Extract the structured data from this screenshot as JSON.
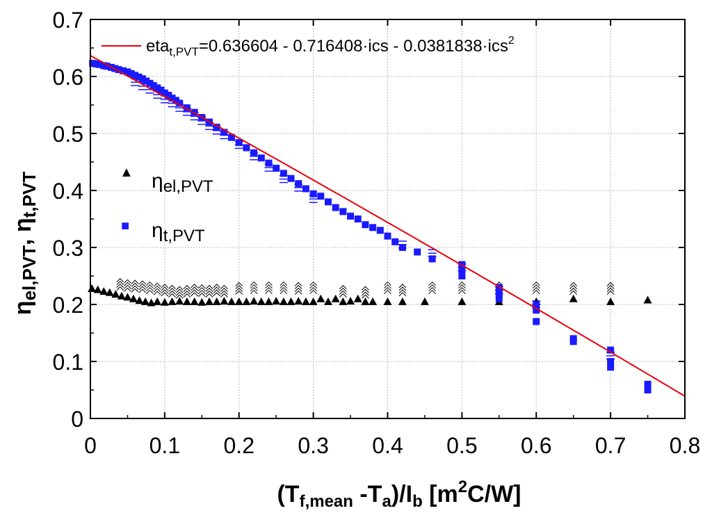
{
  "chart_data": {
    "type": "scatter",
    "xlabel": {
      "main": "(T",
      "sub1": "f,mean",
      "mid1": " -T",
      "sub2": "a",
      "mid2": ")/I",
      "sub3": "b",
      "mid3": " [m",
      "sup": "2",
      "tail": "C/W]"
    },
    "ylabel": {
      "eta1": "η",
      "sub1": "el,PVT",
      "sep": ",   ",
      "eta2": "η",
      "sub2": "t,PVT"
    },
    "xlim": [
      0,
      0.8
    ],
    "ylim": [
      0,
      0.7
    ],
    "x_ticks": [
      0,
      0.1,
      0.2,
      0.3,
      0.4,
      0.5,
      0.6,
      0.7,
      0.8
    ],
    "x_tick_labels": [
      "0",
      "0.1",
      "0.2",
      "0.3",
      "0.4",
      "0.5",
      "0.6",
      "0.7",
      "0.8"
    ],
    "y_ticks": [
      0,
      0.1,
      0.2,
      0.3,
      0.4,
      0.5,
      0.6,
      0.7
    ],
    "y_tick_labels": [
      "0",
      "0.1",
      "0.2",
      "0.3",
      "0.4",
      "0.5",
      "0.6",
      "0.7"
    ],
    "grid": true,
    "legend": {
      "placement": "center-left",
      "items": [
        {
          "symbol": "▲",
          "eta": "η",
          "sub": "el,PVT",
          "color": "#000000"
        },
        {
          "symbol": "■",
          "eta": "η",
          "sub": "t,PVT",
          "color": "#1a1aff"
        }
      ]
    },
    "fit": {
      "name": "eta_t,PVT fit",
      "label": {
        "pre": "eta",
        "sub": "t,PVT",
        "mid": "=0.636604 - 0.716408·ics - 0.0381838·ics",
        "sup": "2"
      },
      "coefficients": [
        0.636604,
        -0.716408,
        -0.0381838
      ],
      "x_range": [
        0,
        0.8
      ],
      "color": "#e8000b"
    },
    "series": [
      {
        "name": "η t,PVT",
        "marker": "square",
        "color": "#1a1aff",
        "points": [
          [
            0.003,
            0.623
          ],
          [
            0.008,
            0.622
          ],
          [
            0.012,
            0.621
          ],
          [
            0.018,
            0.619
          ],
          [
            0.022,
            0.618
          ],
          [
            0.028,
            0.616
          ],
          [
            0.033,
            0.614
          ],
          [
            0.038,
            0.612
          ],
          [
            0.044,
            0.61
          ],
          [
            0.05,
            0.608
          ],
          [
            0.055,
            0.605
          ],
          [
            0.06,
            0.602
          ],
          [
            0.065,
            0.599
          ],
          [
            0.07,
            0.596
          ],
          [
            0.075,
            0.592
          ],
          [
            0.08,
            0.588
          ],
          [
            0.085,
            0.584
          ],
          [
            0.09,
            0.58
          ],
          [
            0.095,
            0.576
          ],
          [
            0.1,
            0.571
          ],
          [
            0.105,
            0.567
          ],
          [
            0.11,
            0.562
          ],
          [
            0.115,
            0.558
          ],
          [
            0.12,
            0.553
          ],
          [
            0.13,
            0.545
          ],
          [
            0.14,
            0.537
          ],
          [
            0.15,
            0.528
          ],
          [
            0.16,
            0.52
          ],
          [
            0.17,
            0.511
          ],
          [
            0.18,
            0.502
          ],
          [
            0.19,
            0.493
          ],
          [
            0.2,
            0.484
          ],
          [
            0.21,
            0.475
          ],
          [
            0.22,
            0.466
          ],
          [
            0.23,
            0.457
          ],
          [
            0.24,
            0.448
          ],
          [
            0.25,
            0.439
          ],
          [
            0.26,
            0.43
          ],
          [
            0.27,
            0.421
          ],
          [
            0.28,
            0.412
          ],
          [
            0.29,
            0.403
          ],
          [
            0.3,
            0.394
          ],
          [
            0.31,
            0.39
          ],
          [
            0.32,
            0.38
          ],
          [
            0.33,
            0.37
          ],
          [
            0.34,
            0.363
          ],
          [
            0.35,
            0.355
          ],
          [
            0.36,
            0.35
          ],
          [
            0.37,
            0.34
          ],
          [
            0.38,
            0.335
          ],
          [
            0.39,
            0.33
          ],
          [
            0.4,
            0.32
          ],
          [
            0.41,
            0.31
          ],
          [
            0.42,
            0.3
          ],
          [
            0.44,
            0.292
          ],
          [
            0.46,
            0.28
          ],
          [
            0.5,
            0.26
          ],
          [
            0.5,
            0.25
          ],
          [
            0.5,
            0.27
          ],
          [
            0.55,
            0.22
          ],
          [
            0.55,
            0.21
          ],
          [
            0.55,
            0.23
          ],
          [
            0.6,
            0.19
          ],
          [
            0.6,
            0.17
          ],
          [
            0.6,
            0.2
          ],
          [
            0.65,
            0.14
          ],
          [
            0.65,
            0.135
          ],
          [
            0.7,
            0.1
          ],
          [
            0.7,
            0.09
          ],
          [
            0.7,
            0.12
          ],
          [
            0.75,
            0.06
          ],
          [
            0.75,
            0.05
          ]
        ]
      },
      {
        "name": "η el,PVT",
        "marker": "triangle",
        "color": "#000000",
        "points": [
          [
            0.002,
            0.228
          ],
          [
            0.01,
            0.226
          ],
          [
            0.018,
            0.223
          ],
          [
            0.026,
            0.221
          ],
          [
            0.034,
            0.218
          ],
          [
            0.042,
            0.215
          ],
          [
            0.05,
            0.213
          ],
          [
            0.058,
            0.21
          ],
          [
            0.066,
            0.207
          ],
          [
            0.074,
            0.205
          ],
          [
            0.082,
            0.203
          ],
          [
            0.09,
            0.205
          ],
          [
            0.1,
            0.204
          ],
          [
            0.11,
            0.205
          ],
          [
            0.12,
            0.206
          ],
          [
            0.13,
            0.205
          ],
          [
            0.14,
            0.205
          ],
          [
            0.15,
            0.204
          ],
          [
            0.16,
            0.205
          ],
          [
            0.17,
            0.205
          ],
          [
            0.18,
            0.206
          ],
          [
            0.19,
            0.205
          ],
          [
            0.2,
            0.205
          ],
          [
            0.21,
            0.205
          ],
          [
            0.22,
            0.206
          ],
          [
            0.23,
            0.205
          ],
          [
            0.24,
            0.205
          ],
          [
            0.25,
            0.206
          ],
          [
            0.26,
            0.205
          ],
          [
            0.27,
            0.205
          ],
          [
            0.28,
            0.206
          ],
          [
            0.29,
            0.205
          ],
          [
            0.3,
            0.205
          ],
          [
            0.31,
            0.21
          ],
          [
            0.32,
            0.205
          ],
          [
            0.33,
            0.21
          ],
          [
            0.34,
            0.205
          ],
          [
            0.35,
            0.206
          ],
          [
            0.36,
            0.21
          ],
          [
            0.37,
            0.205
          ],
          [
            0.38,
            0.205
          ],
          [
            0.4,
            0.205
          ],
          [
            0.42,
            0.205
          ],
          [
            0.45,
            0.205
          ],
          [
            0.5,
            0.205
          ],
          [
            0.55,
            0.205
          ],
          [
            0.6,
            0.205
          ],
          [
            0.65,
            0.21
          ],
          [
            0.7,
            0.205
          ],
          [
            0.75,
            0.208
          ]
        ]
      },
      {
        "name": "η t,PVT (dense band)",
        "marker": "dash",
        "color": "#1a1aff",
        "points": [
          [
            0.06,
            0.59
          ],
          [
            0.07,
            0.583
          ],
          [
            0.08,
            0.577
          ],
          [
            0.09,
            0.568
          ],
          [
            0.1,
            0.56
          ],
          [
            0.11,
            0.553
          ],
          [
            0.12,
            0.545
          ],
          [
            0.13,
            0.538
          ],
          [
            0.14,
            0.53
          ],
          [
            0.15,
            0.522
          ],
          [
            0.16,
            0.513
          ],
          [
            0.17,
            0.505
          ],
          [
            0.18,
            0.497
          ],
          [
            0.2,
            0.48
          ],
          [
            0.22,
            0.46
          ],
          [
            0.24,
            0.44
          ],
          [
            0.26,
            0.42
          ],
          [
            0.28,
            0.405
          ],
          [
            0.3,
            0.385
          ],
          [
            0.42,
            0.305
          ],
          [
            0.46,
            0.29
          ],
          [
            0.5,
            0.265
          ],
          [
            0.55,
            0.225
          ],
          [
            0.6,
            0.2
          ],
          [
            0.7,
            0.11
          ]
        ]
      },
      {
        "name": "η el,PVT (dense band)",
        "marker": "chevron",
        "color": "#000000",
        "points": [
          [
            0.04,
            0.232
          ],
          [
            0.05,
            0.23
          ],
          [
            0.06,
            0.229
          ],
          [
            0.07,
            0.228
          ],
          [
            0.08,
            0.226
          ],
          [
            0.09,
            0.224
          ],
          [
            0.1,
            0.222
          ],
          [
            0.11,
            0.22
          ],
          [
            0.12,
            0.218
          ],
          [
            0.13,
            0.22
          ],
          [
            0.14,
            0.222
          ],
          [
            0.15,
            0.221
          ],
          [
            0.16,
            0.22
          ],
          [
            0.17,
            0.222
          ],
          [
            0.18,
            0.22
          ],
          [
            0.2,
            0.225
          ],
          [
            0.22,
            0.226
          ],
          [
            0.24,
            0.226
          ],
          [
            0.26,
            0.226
          ],
          [
            0.28,
            0.225
          ],
          [
            0.3,
            0.226
          ],
          [
            0.34,
            0.22
          ],
          [
            0.37,
            0.218
          ],
          [
            0.4,
            0.226
          ],
          [
            0.42,
            0.222
          ],
          [
            0.46,
            0.226
          ],
          [
            0.5,
            0.226
          ],
          [
            0.55,
            0.226
          ],
          [
            0.6,
            0.226
          ],
          [
            0.65,
            0.225
          ],
          [
            0.7,
            0.225
          ]
        ]
      }
    ]
  }
}
